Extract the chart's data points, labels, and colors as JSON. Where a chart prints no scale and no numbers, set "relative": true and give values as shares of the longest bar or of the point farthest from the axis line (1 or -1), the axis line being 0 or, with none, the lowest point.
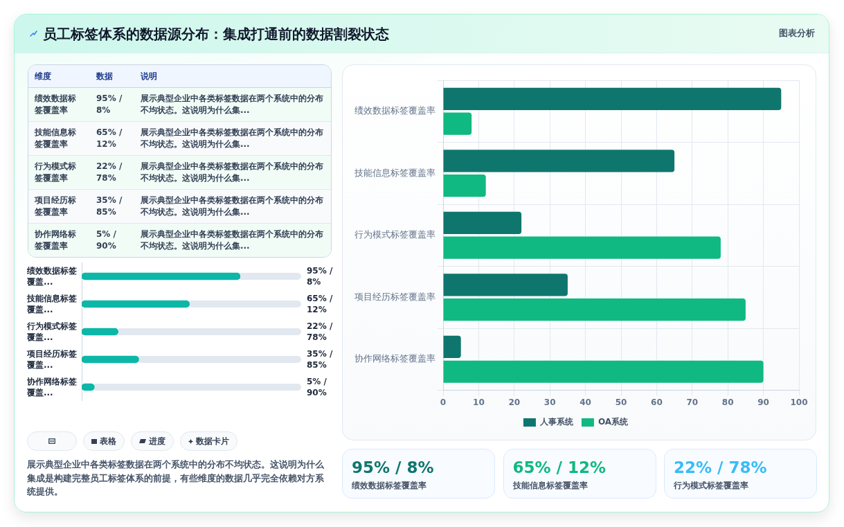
{
  "chart_data": [
    {
      "type": "other",
      "title": "员工标签体系的数据源分布：集成打通前的数据割裂状态",
      "annotations": [
        "图表分析"
      ]
    },
    {
      "type": "other",
      "annotations": [
        "维度",
        "数据",
        "说明",
        "绩效数据标签覆盖率",
        "95% / 8%",
        "展示典型企业中各类标签数据在两个系统中的分布不均状态。这说明为什么集...",
        "技能信息标签覆盖率",
        "65% / 12%",
        "展示典型企业中各类标签数据在两个系统中的分布不均状态。这说明为什么集...",
        "行为模式标签覆盖率",
        "22% / 78%",
        "展示典型企业中各类标签数据在两个系统中的分布不均状态。这说明为什么集...",
        "项目经历标签覆盖率",
        "35% / 85%",
        "展示典型企业中各类标签数据在两个系统中的分布不均状态。这说明为什么集...",
        "协作网络标签覆盖率",
        "5% / 90%",
        "展示典型企业中各类标签数据在两个系统中的分布不均状态。这说明为什么集..."
      ]
    },
    {
      "type": "bar",
      "orientation": "horizontal",
      "categories": [
        "绩效数据标签覆盖率",
        "技能信息标签覆盖率",
        "行为模式标签覆盖率",
        "项目经历标签覆盖率",
        "协作网络标签覆盖率"
      ],
      "series": [
        {
          "name": "人事系统",
          "color": "#0f766e",
          "values": [
            95,
            65,
            22,
            35,
            5
          ]
        },
        {
          "name": "OA系统",
          "color": "#10b981",
          "values": [
            8,
            12,
            78,
            85,
            90
          ]
        }
      ],
      "xlim": [
        0,
        100
      ],
      "xticks": [
        0,
        10,
        20,
        30,
        40,
        50,
        60,
        70,
        80,
        90,
        100
      ],
      "grid": true,
      "legend": "bottom"
    },
    {
      "type": "bar",
      "orientation": "horizontal",
      "relative": true,
      "categories": [
        "绩效数据标签覆盖...",
        "技能信息标签覆盖...",
        "行为模式标签覆盖...",
        "项目经历标签覆盖...",
        "协作网络标签覆盖..."
      ],
      "values": [
        1,
        0.68,
        0.23,
        0.36,
        0.08
      ],
      "color": "#0db7a8"
    },
    {
      "type": "other",
      "annotations": [
        "95% / 8%",
        "65% / 12%",
        "22% / 78%",
        "35% / 85%",
        "5% / 90%"
      ]
    },
    {
      "type": "other",
      "annotations": [
        "表格",
        "进度",
        "数据卡片",
        "展示典型企业中各类标签数据在两个系统中的分布不均状态。这说明为什么集成是构建完整员工标签体系的前提，有些维度的数据几乎完全依赖对方系统提供。"
      ]
    },
    {
      "type": "other",
      "annotations": [
        "95% / 8%",
        "绩效数据标签覆盖率",
        "65% / 12%",
        "技能信息标签覆盖率",
        "22% / 78%",
        "行为模式标签覆盖率"
      ],
      "colors": [
        "#0f766e",
        "#10b981",
        "#38bdf8"
      ]
    }
  ]
}
